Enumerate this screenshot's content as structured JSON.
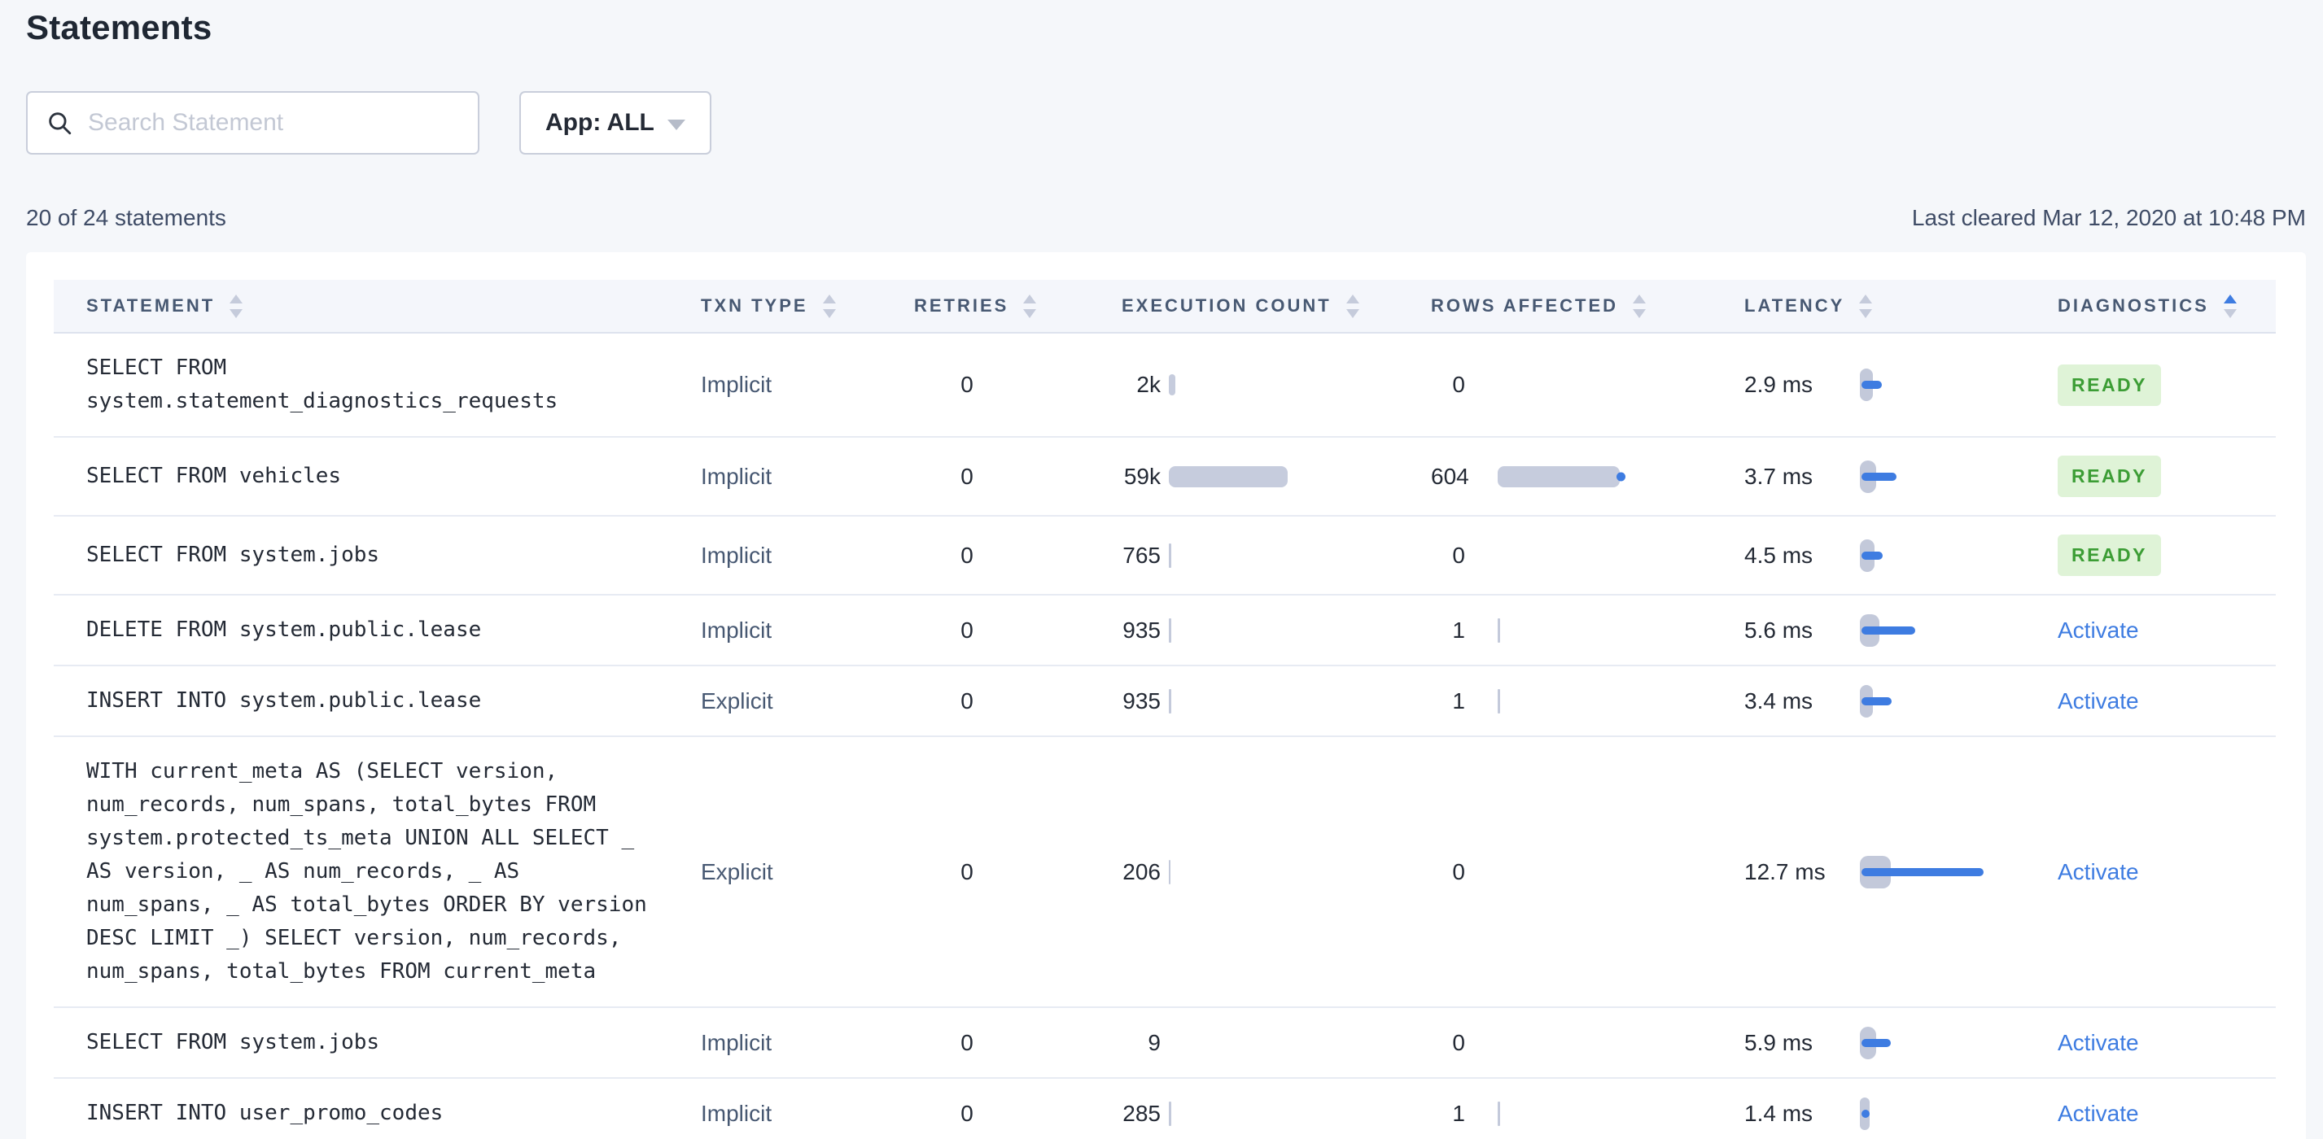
{
  "page": {
    "title": "Statements"
  },
  "toolbar": {
    "search_placeholder": "Search Statement",
    "app_filter_label": "App: ALL"
  },
  "meta": {
    "count_text": "20 of 24 statements",
    "last_cleared": "Last cleared Mar 12, 2020 at 10:48 PM"
  },
  "colors": {
    "accent_blue": "#3e7ce1",
    "ready_green": "#3c9d35",
    "ready_bg": "#dff3d7",
    "bar_gray": "#c6ccdd",
    "page_bg": "#f5f7fa",
    "header_text": "#475872"
  },
  "table": {
    "columns": [
      {
        "key": "statement",
        "label": "STATEMENT",
        "sort": "none"
      },
      {
        "key": "txn_type",
        "label": "TXN TYPE",
        "sort": "none"
      },
      {
        "key": "retries",
        "label": "RETRIES",
        "sort": "none"
      },
      {
        "key": "execution_count",
        "label": "EXECUTION COUNT",
        "sort": "none"
      },
      {
        "key": "rows_affected",
        "label": "ROWS AFFECTED",
        "sort": "none"
      },
      {
        "key": "latency",
        "label": "LATENCY",
        "sort": "none"
      },
      {
        "key": "diagnostics",
        "label": "DIAGNOSTICS",
        "sort": "asc"
      }
    ],
    "rows": [
      {
        "statement": "SELECT FROM system.statement_diagnostics_requests",
        "txn_type": "Implicit",
        "retries": "0",
        "execution_count": "2k",
        "exec_bar": 8,
        "rows_affected": "0",
        "rows_bar": 0,
        "rows_dot": false,
        "latency": "2.9 ms",
        "latency_bar": 25,
        "latency_dev": 16,
        "diag_type": "ready",
        "diag_label": "READY"
      },
      {
        "statement": "SELECT FROM vehicles",
        "txn_type": "Implicit",
        "retries": "0",
        "execution_count": "59k",
        "exec_bar": 146,
        "rows_affected": "604",
        "rows_bar": 150,
        "rows_dot": true,
        "latency": "3.7 ms",
        "latency_bar": 43,
        "latency_dev": 20,
        "diag_type": "ready",
        "diag_label": "READY"
      },
      {
        "statement": "SELECT FROM system.jobs",
        "txn_type": "Implicit",
        "retries": "0",
        "execution_count": "765",
        "exec_bar": 3,
        "rows_affected": "0",
        "rows_bar": 0,
        "rows_dot": false,
        "latency": "4.5 ms",
        "latency_bar": 26,
        "latency_dev": 18,
        "diag_type": "ready",
        "diag_label": "READY"
      },
      {
        "statement": "DELETE FROM system.public.lease",
        "txn_type": "Implicit",
        "retries": "0",
        "execution_count": "935",
        "exec_bar": 3,
        "rows_affected": "1",
        "rows_bar": 3,
        "rows_dot": false,
        "latency": "5.6 ms",
        "latency_bar": 66,
        "latency_dev": 24,
        "diag_type": "activate",
        "diag_label": "Activate"
      },
      {
        "statement": "INSERT INTO system.public.lease",
        "txn_type": "Explicit",
        "retries": "0",
        "execution_count": "935",
        "exec_bar": 3,
        "rows_affected": "1",
        "rows_bar": 3,
        "rows_dot": false,
        "latency": "3.4 ms",
        "latency_bar": 37,
        "latency_dev": 16,
        "diag_type": "activate",
        "diag_label": "Activate"
      },
      {
        "statement": "WITH current_meta AS (SELECT version, num_records, num_spans, total_bytes FROM system.protected_ts_meta UNION ALL SELECT _ AS version, _ AS num_records, _ AS num_spans, _ AS total_bytes ORDER BY version DESC LIMIT _) SELECT version, num_records, num_spans, total_bytes FROM current_meta",
        "txn_type": "Explicit",
        "retries": "0",
        "execution_count": "206",
        "exec_bar": 2,
        "rows_affected": "0",
        "rows_bar": 0,
        "rows_dot": false,
        "latency": "12.7 ms",
        "latency_bar": 150,
        "latency_dev": 38,
        "diag_type": "activate",
        "diag_label": "Activate"
      },
      {
        "statement": "SELECT FROM system.jobs",
        "txn_type": "Implicit",
        "retries": "0",
        "execution_count": "9",
        "exec_bar": 0,
        "rows_affected": "0",
        "rows_bar": 0,
        "rows_dot": false,
        "latency": "5.9 ms",
        "latency_bar": 36,
        "latency_dev": 20,
        "diag_type": "activate",
        "diag_label": "Activate"
      },
      {
        "statement": "INSERT INTO user_promo_codes",
        "txn_type": "Implicit",
        "retries": "0",
        "execution_count": "285",
        "exec_bar": 3,
        "rows_affected": "1",
        "rows_bar": 3,
        "rows_dot": false,
        "latency": "1.4 ms",
        "latency_bar": 10,
        "latency_dev": 12,
        "diag_type": "activate",
        "diag_label": "Activate"
      }
    ]
  }
}
